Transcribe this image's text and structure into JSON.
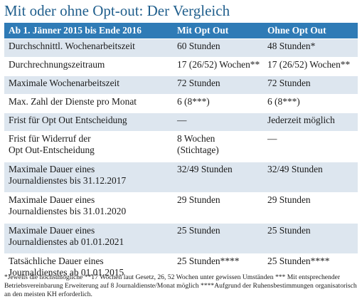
{
  "title": "Mit oder ohne Opt-out: Der Vergleich",
  "header": {
    "col1": "Ab 1. Jänner 2015 bis Ende 2016",
    "col2": "Mit Opt Out",
    "col3": "Ohne Opt Out"
  },
  "rows": [
    {
      "label": "Durchschnittl. Wochenarbeitszeit",
      "with": "60 Stunden",
      "without": "48 Stunden*"
    },
    {
      "label": "Durchrechnungszeitraum",
      "with": "17 (26/52) Wochen**",
      "without": "17 (26/52) Wochen**"
    },
    {
      "label": "Maximale Wochenarbeitszeit",
      "with": "72 Stunden",
      "without": "72 Stunden"
    },
    {
      "label": "Max. Zahl der Dienste pro Monat",
      "with": "6 (8***)",
      "without": "6 (8***)"
    },
    {
      "label": "Frist für Opt Out Entscheidung",
      "with": "—",
      "without": "Jederzeit möglich"
    },
    {
      "label": "Frist für Widerruf der\nOpt Out-Entscheidung",
      "with": "8 Wochen\n(Stichtage)",
      "without": "—"
    },
    {
      "label": "Maximale Dauer eines\nJournaldienstes bis 31.12.2017",
      "with": "32/49 Stunden",
      "without": "32/49 Stunden"
    },
    {
      "label": "Maximale Dauer eines\nJournaldienstes bis 31.01.2020",
      "with": "29 Stunden",
      "without": "29 Stunden"
    },
    {
      "label": "Maximale Dauer eines\nJournaldienstes ab 01.01.2021",
      "with": "25 Stunden",
      "without": "25 Stunden"
    },
    {
      "label": "Tatsächliche Dauer eines\nJournaldienstes ab 01.01.2015",
      "with": "25 Stunden****",
      "without": "25 Stunden****"
    }
  ],
  "footnote": "*Jeweils die höchstmögliche **17 Wochen laut Gesetz, 26, 52 Wochen unter gewissen Umständen *** Mit entsprechender Betriebsvereinbarung Erweiterung auf 8 Journaldienste/Monat möglich ****Aufgrund der Ruhensbestimmungen organisatorisch an den meisten KH erforderlich.",
  "colors": {
    "title": "#1f5e8c",
    "header_bg": "#2f7bb6",
    "stripe_bg": "#dde6ef"
  }
}
